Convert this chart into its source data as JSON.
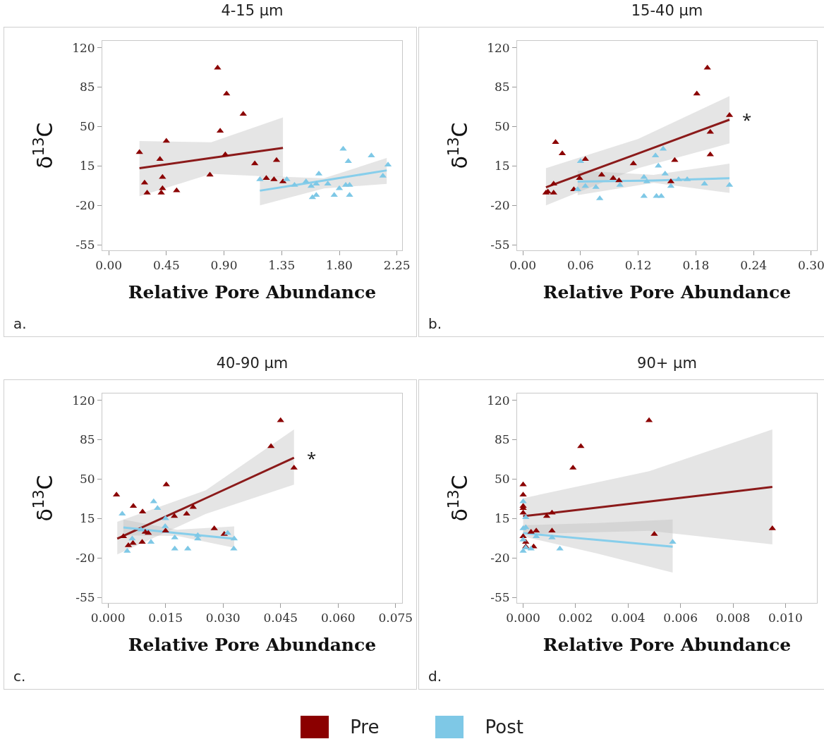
{
  "chart_data": [
    {
      "type": "scatter",
      "title": "4-15 μm",
      "xlabel": "Relative Pore Abundance",
      "ylabel": "δ$^{13}$C",
      "marker": "triangle",
      "grid": false,
      "legend": "bottom",
      "xlim": [
        -0.05,
        2.29
      ],
      "xticks": [
        {
          "value": 0,
          "label": "0.00"
        },
        0.45,
        {
          "value": 0.9,
          "label": "0.90"
        },
        1.35,
        {
          "value": 1.8,
          "label": "1.80"
        },
        2.25
      ],
      "ylim": [
        -60,
        126
      ],
      "yticks": [
        -55,
        -20,
        15,
        50,
        85,
        120
      ],
      "annotations": [
        "a."
      ],
      "series": [
        {
          "name": "Pre",
          "color": "#8b0000",
          "x": [
            0.24,
            0.28,
            0.3,
            0.4,
            0.45,
            0.42,
            0.42,
            0.41,
            0.53,
            0.85,
            0.92,
            0.87,
            0.91,
            1.05,
            0.79,
            1.14,
            1.23,
            1.29,
            1.31,
            1.36
          ],
          "values": [
            27,
            0,
            -9,
            21,
            37,
            5,
            -5,
            -9,
            -7,
            102,
            79,
            46,
            25,
            61,
            7,
            17,
            4,
            3,
            20,
            1
          ]
        },
        {
          "name": "Post",
          "color": "#7ec8e6",
          "x": [
            1.18,
            1.39,
            1.45,
            1.54,
            1.58,
            1.62,
            1.64,
            1.62,
            1.59,
            1.71,
            1.76,
            1.8,
            1.83,
            1.87,
            1.85,
            1.88,
            1.88,
            2.05,
            2.14,
            2.18
          ],
          "values": [
            3,
            3,
            -2,
            1,
            -3,
            -1,
            8,
            -11,
            -13,
            -1,
            -11,
            -5,
            30,
            19,
            -2,
            -2,
            -11,
            24,
            6,
            16
          ]
        },
        {
          "type": "line",
          "marker": "none",
          "color": "#8b1a1a",
          "x": [
            0.24,
            0.8,
            1.36
          ],
          "values": [
            13,
            22,
            31
          ],
          "lower": [
            -12,
            8,
            5
          ],
          "upper": [
            37,
            36,
            58
          ]
        },
        {
          "type": "line",
          "marker": "none",
          "color": "#87ceeb",
          "x": [
            1.18,
            1.68,
            2.17
          ],
          "values": [
            -7,
            2,
            11
          ],
          "lower": [
            -20,
            -5,
            -1
          ],
          "upper": [
            6,
            4,
            22
          ]
        }
      ]
    },
    {
      "type": "scatter",
      "title": "15-40 μm",
      "xlabel": "Relative Pore Abundance",
      "ylabel": "δ$^{13}$C",
      "marker": "triangle",
      "grid": false,
      "legend": false,
      "xlim": [
        -0.006,
        0.306
      ],
      "xticks": [
        {
          "value": 0,
          "label": "0.00"
        },
        0.06,
        0.12,
        0.18,
        0.24,
        {
          "value": 0.3,
          "label": "0.30"
        }
      ],
      "ylim": [
        -60,
        126
      ],
      "yticks": [
        -55,
        -20,
        15,
        50,
        85,
        120
      ],
      "annotations": [
        {
          "text": "*",
          "x": 0.215,
          "y": 56
        },
        "b."
      ],
      "series": [
        {
          "color": "#8b0000",
          "x": [
            0.024,
            0.026,
            0.032,
            0.032,
            0.034,
            0.041,
            0.053,
            0.059,
            0.065,
            0.082,
            0.094,
            0.1,
            0.115,
            0.154,
            0.158,
            0.181,
            0.192,
            0.195,
            0.195,
            0.215
          ],
          "values": [
            -9,
            -8,
            -1,
            -9,
            36,
            26,
            -6,
            4,
            21,
            7,
            4,
            2,
            17,
            1,
            20,
            79,
            102,
            45,
            25,
            60
          ]
        },
        {
          "color": "#7ec8e6",
          "x": [
            0.057,
            0.06,
            0.065,
            0.076,
            0.08,
            0.101,
            0.126,
            0.129,
            0.126,
            0.138,
            0.139,
            0.144,
            0.141,
            0.146,
            0.148,
            0.154,
            0.162,
            0.171,
            0.189,
            0.215
          ],
          "values": [
            -6,
            19,
            -3,
            -4,
            -14,
            -2,
            5,
            1,
            -12,
            24,
            -12,
            -12,
            15,
            30,
            8,
            -3,
            3,
            3,
            -1,
            -2
          ]
        },
        {
          "type": "line",
          "marker": "none",
          "color": "#8b1a1a",
          "x": [
            0.024,
            0.12,
            0.215
          ],
          "values": [
            -4,
            26,
            56
          ],
          "lower": [
            -20,
            13,
            35
          ],
          "upper": [
            13,
            39,
            77
          ]
        },
        {
          "type": "line",
          "marker": "none",
          "color": "#87ceeb",
          "x": [
            0.057,
            0.136,
            0.215
          ],
          "values": [
            1,
            2,
            4
          ],
          "lower": [
            -11,
            0,
            -9
          ],
          "upper": [
            11,
            7,
            17
          ]
        }
      ]
    },
    {
      "type": "scatter",
      "title": "40-90 μm",
      "xlabel": "Relative Pore Abundance",
      "ylabel": "δ$^{13}$C",
      "marker": "triangle",
      "grid": false,
      "legend": false,
      "xlim": [
        -0.0015,
        0.0767
      ],
      "xticks": [
        {
          "value": 0,
          "label": "0.000"
        },
        0.015,
        {
          "value": 0.03,
          "label": "0.030"
        },
        0.045,
        {
          "value": 0.06,
          "label": "0.060"
        },
        0.075
      ],
      "ylim": [
        -60,
        126
      ],
      "yticks": [
        -55,
        -20,
        15,
        50,
        85,
        120
      ],
      "annotations": [
        {
          "text": "*",
          "x": 0.0485,
          "y": 69
        },
        "c."
      ],
      "series": [
        {
          "color": "#8b0000",
          "x": [
            0.0022,
            0.004,
            0.0053,
            0.0065,
            0.0066,
            0.0089,
            0.009,
            0.0097,
            0.0105,
            0.015,
            0.0152,
            0.0173,
            0.0205,
            0.0222,
            0.0277,
            0.0303,
            0.0425,
            0.045,
            0.0485
          ],
          "values": [
            36,
            -1,
            -9,
            -7,
            26,
            -6,
            21,
            3,
            2,
            4,
            45,
            17,
            19,
            25,
            6,
            1,
            79,
            102,
            60
          ]
        },
        {
          "color": "#7ec8e6",
          "x": [
            0.0037,
            0.005,
            0.0063,
            0.0086,
            0.0112,
            0.0119,
            0.0129,
            0.015,
            0.0149,
            0.0174,
            0.0174,
            0.0208,
            0.0234,
            0.0234,
            0.0312,
            0.0329,
            0.0328
          ],
          "values": [
            19,
            -14,
            -3,
            5,
            -6,
            30,
            24,
            15,
            8,
            -2,
            -12,
            -12,
            0,
            -3,
            2,
            -3,
            -12
          ]
        },
        {
          "type": "line",
          "marker": "none",
          "color": "#8b1a1a",
          "x": [
            0.0024,
            0.0255,
            0.0485
          ],
          "values": [
            -3,
            33,
            69
          ],
          "lower": [
            -17,
            19,
            45
          ],
          "upper": [
            12,
            40,
            94
          ]
        },
        {
          "type": "line",
          "marker": "none",
          "color": "#87ceeb",
          "x": [
            0.004,
            0.018,
            0.0329
          ],
          "values": [
            7,
            2,
            -3
          ],
          "lower": [
            0,
            -0.5,
            -11
          ],
          "upper": [
            14,
            5,
            8
          ]
        }
      ]
    },
    {
      "type": "scatter",
      "title": "90+ μm",
      "xlabel": "Relative Pore Abundance",
      "ylabel": "δ$^{13}$C",
      "marker": "triangle",
      "grid": false,
      "legend": false,
      "xlim": [
        -0.00023,
        0.0112
      ],
      "xticks": [
        {
          "value": 0,
          "label": "0.000"
        },
        0.002,
        0.004,
        0.006,
        0.008,
        {
          "value": 0.01,
          "label": "0.010"
        }
      ],
      "ylim": [
        -60,
        126
      ],
      "yticks": [
        -55,
        -20,
        15,
        50,
        85,
        120
      ],
      "annotations": [
        "d."
      ],
      "series": [
        {
          "color": "#8b0000",
          "x": [
            0,
            0,
            0,
            0,
            0,
            0,
            0.0001,
            0.0001,
            0.0003,
            0.0004,
            0.0005,
            0.0009,
            0.0011,
            0.0011,
            0.0019,
            0.0022,
            0.0048,
            0.005,
            0.0095
          ],
          "values": [
            45,
            36,
            26,
            24,
            20,
            -1,
            -6,
            -10,
            3,
            -10,
            4,
            17,
            20,
            4,
            60,
            79,
            102,
            1,
            6
          ]
        },
        {
          "color": "#7ec8e6",
          "x": [
            0,
            0.0001,
            0.0001,
            0,
            0,
            0,
            0.0001,
            0.0003,
            0.0005,
            0.0011,
            0.0014,
            0.0057
          ],
          "values": [
            30,
            16,
            7,
            6,
            -4,
            -14,
            -11,
            -12,
            -1,
            -2,
            -12,
            -6
          ]
        },
        {
          "type": "line",
          "marker": "none",
          "color": "#8b1a1a",
          "x": [
            0,
            0.0048,
            0.0095
          ],
          "values": [
            17,
            30,
            43
          ],
          "lower": [
            1,
            4,
            -8
          ],
          "upper": [
            33,
            57,
            94
          ]
        },
        {
          "type": "line",
          "marker": "none",
          "color": "#87ceeb",
          "x": [
            0,
            0.0028,
            0.0057
          ],
          "values": [
            2,
            -4,
            -10
          ],
          "lower": [
            -1,
            -16,
            -33
          ],
          "upper": [
            9,
            11,
            14
          ]
        }
      ]
    }
  ]
}
